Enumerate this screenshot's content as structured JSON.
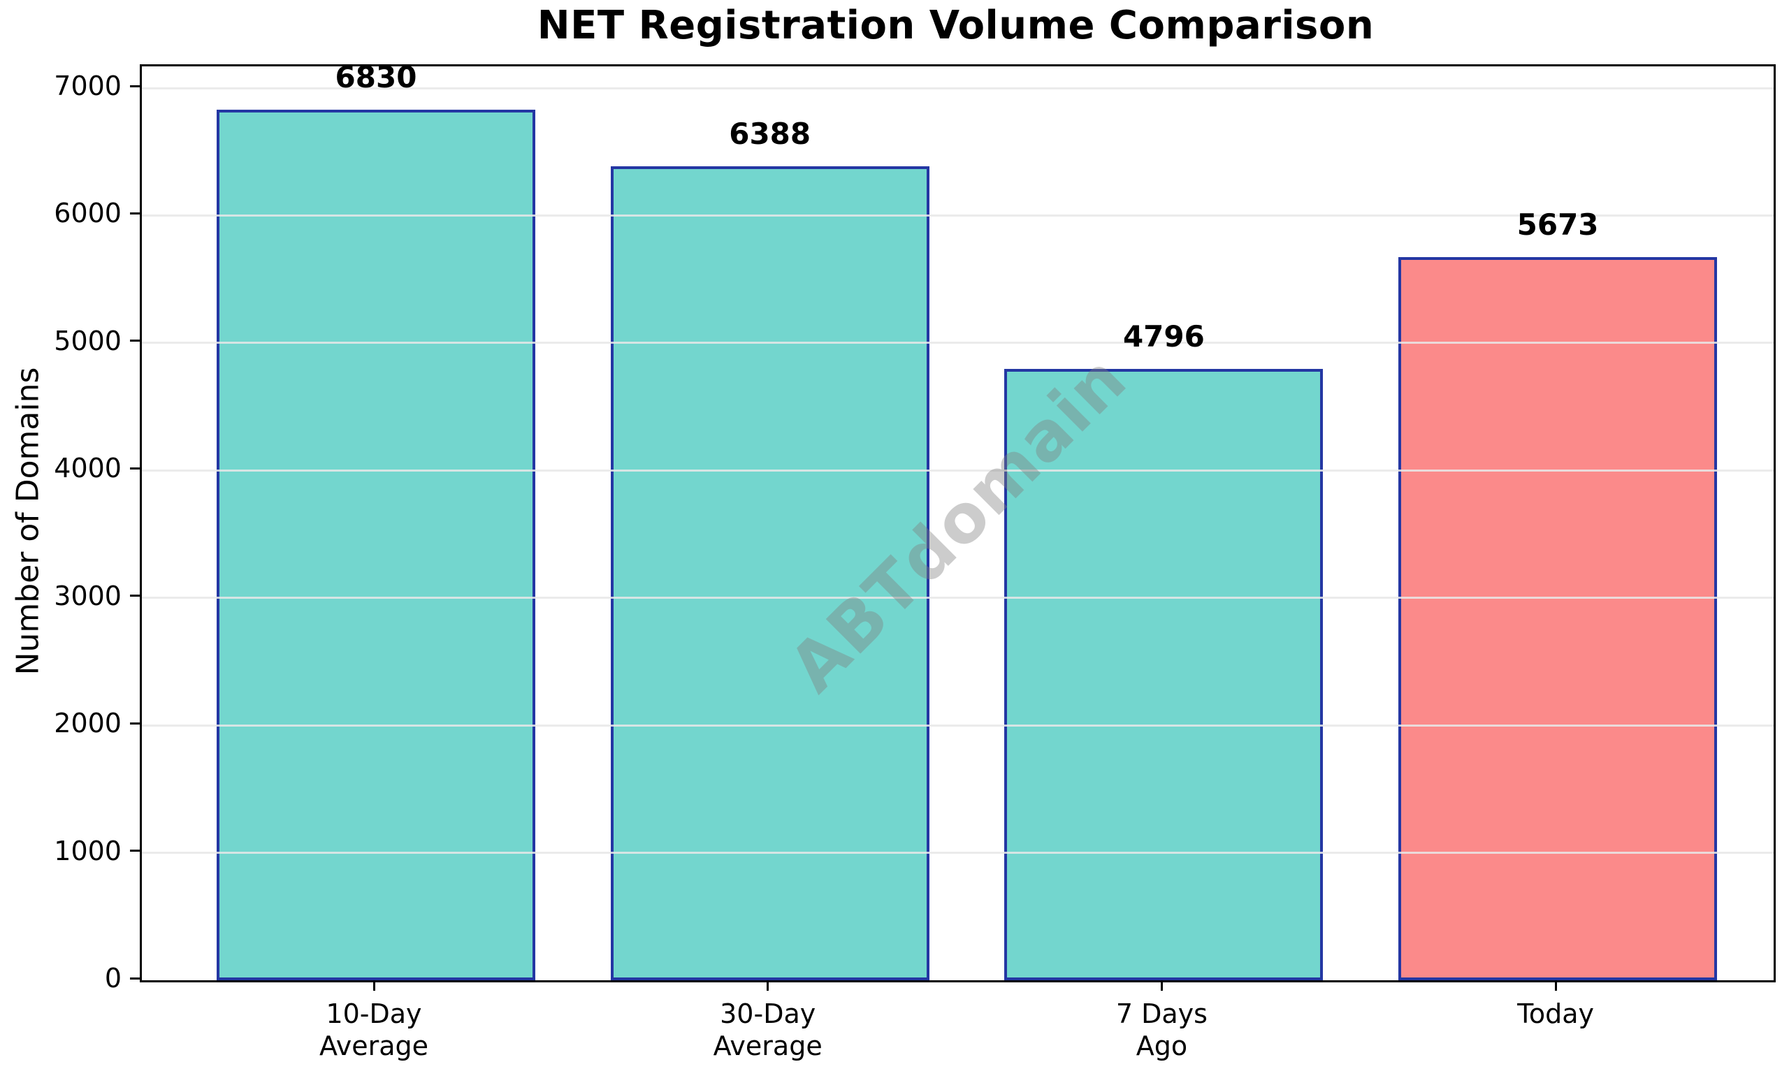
{
  "figure": {
    "background": "#ffffff"
  },
  "chart_data": {
    "type": "bar",
    "title": "NET Registration Volume Comparison",
    "xlabel": "",
    "ylabel": "Number of Domains",
    "categories": [
      "10-Day\nAverage",
      "30-Day\nAverage",
      "7 Days\nAgo",
      "Today"
    ],
    "values": [
      6830,
      6388,
      4796,
      5673
    ],
    "value_labels": [
      "6830",
      "6388",
      "4796",
      "5673"
    ],
    "bar_colors": [
      "#73D6CE",
      "#73D6CE",
      "#73D6CE",
      "#FB8A8A"
    ],
    "bar_edge_color": "#2437A3",
    "yticks": [
      0,
      1000,
      2000,
      3000,
      4000,
      5000,
      6000,
      7000
    ],
    "ytick_labels": [
      "0",
      "1000",
      "2000",
      "3000",
      "4000",
      "5000",
      "6000",
      "7000"
    ],
    "ylim": [
      0,
      7170
    ],
    "grid": "horizontal",
    "grid_color": "rgba(231,231,231,0.85)",
    "legend": "none",
    "watermark": "ABTdomain",
    "watermark_color": "rgba(128,128,128,0.4)"
  }
}
